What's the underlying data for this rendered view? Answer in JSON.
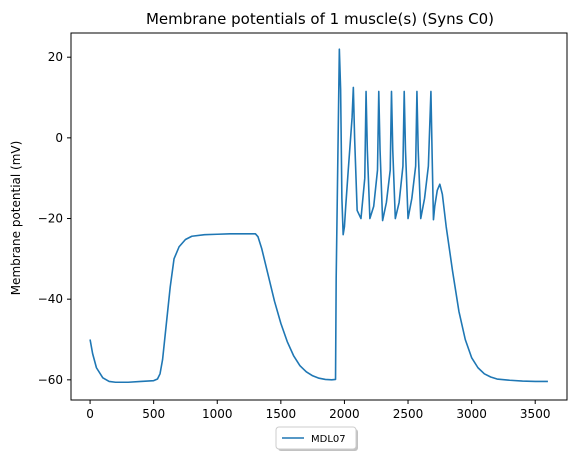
{
  "chart_data": {
    "type": "line",
    "title": "Membrane potentials of 1 muscle(s) (Syns C0)",
    "xlabel": "",
    "ylabel": "Membrane potential (mV)",
    "xlim": [
      -150,
      3750
    ],
    "ylim": [
      -65,
      26
    ],
    "xticks": [
      0,
      500,
      1000,
      1500,
      2000,
      2500,
      3000,
      3500
    ],
    "yticks": [
      -60,
      -40,
      -20,
      0,
      20
    ],
    "grid": false,
    "legend": {
      "placement": "bottom-center-outside",
      "entries": [
        "MDL07"
      ]
    },
    "series": [
      {
        "name": "MDL07",
        "color": "#1f77b4",
        "x": [
          0,
          20,
          50,
          100,
          150,
          200,
          300,
          400,
          500,
          530,
          550,
          570,
          600,
          630,
          660,
          700,
          750,
          800,
          900,
          1000,
          1100,
          1200,
          1300,
          1320,
          1350,
          1400,
          1450,
          1500,
          1550,
          1600,
          1650,
          1700,
          1750,
          1800,
          1850,
          1900,
          1930,
          1935,
          1960,
          1970,
          1980,
          1990,
          2000,
          2010,
          2030,
          2060,
          2070,
          2080,
          2100,
          2130,
          2160,
          2170,
          2180,
          2200,
          2230,
          2260,
          2270,
          2280,
          2300,
          2330,
          2360,
          2370,
          2380,
          2400,
          2430,
          2460,
          2470,
          2480,
          2500,
          2530,
          2560,
          2570,
          2580,
          2600,
          2630,
          2660,
          2680,
          2690,
          2700,
          2710,
          2730,
          2750,
          2770,
          2800,
          2850,
          2900,
          2950,
          3000,
          3050,
          3100,
          3150,
          3200,
          3300,
          3400,
          3500,
          3600
        ],
        "y": [
          -50,
          -53.5,
          -57,
          -59.5,
          -60.4,
          -60.6,
          -60.6,
          -60.4,
          -60.2,
          -59.8,
          -58.5,
          -55,
          -46,
          -37,
          -30,
          -27,
          -25.2,
          -24.4,
          -24,
          -23.9,
          -23.8,
          -23.8,
          -23.8,
          -24.5,
          -27.5,
          -34,
          -40.5,
          -46,
          -50.5,
          -54,
          -56.5,
          -58,
          -59,
          -59.6,
          -59.9,
          -60,
          -59.9,
          -35,
          22,
          12,
          -15,
          -24,
          -22,
          -17,
          -8,
          5,
          12.5,
          0,
          -18,
          -20,
          -10,
          11.5,
          -3,
          -20,
          -17,
          -8,
          11.5,
          -3,
          -20.5,
          -16,
          -8,
          11.5,
          -3,
          -20,
          -16,
          -7,
          11.5,
          -3,
          -20,
          -15,
          -7,
          11.5,
          -3,
          -20,
          -15,
          -7,
          11.5,
          -5,
          -20.3,
          -17,
          -13,
          -11.5,
          -14,
          -22,
          -33,
          -43,
          -50,
          -54.5,
          -57,
          -58.5,
          -59.3,
          -59.8,
          -60.1,
          -60.3,
          -60.4,
          -60.4
        ]
      }
    ]
  }
}
